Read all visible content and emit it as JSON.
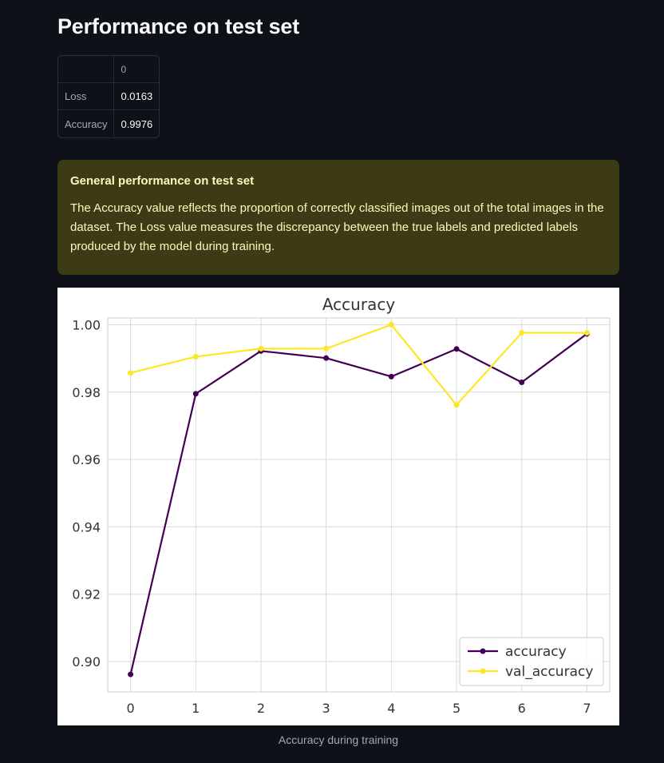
{
  "page": {
    "title": "Performance on test set"
  },
  "metrics_table": {
    "column_header": "0",
    "rows": [
      {
        "label": "Loss",
        "value": "0.0163"
      },
      {
        "label": "Accuracy",
        "value": "0.9976"
      }
    ]
  },
  "info_box": {
    "heading": "General performance on test set",
    "text": "The Accuracy value reflects the proportion of correctly classified images out of the total images in the dataset. The Loss value measures the discrepancy between the true labels and predicted labels produced by the model during training."
  },
  "chart_caption": "Accuracy during training",
  "colors": {
    "background": "#0e1117",
    "info_background": "#3c3b16",
    "info_text": "#fff8bd",
    "accuracy_series": "#440154",
    "val_accuracy_series": "#fde725"
  },
  "chart_data": {
    "type": "line",
    "title": "Accuracy",
    "xlabel": "",
    "ylabel": "",
    "x": [
      0,
      1,
      2,
      3,
      4,
      5,
      6,
      7
    ],
    "x_ticks": [
      "0",
      "1",
      "2",
      "3",
      "4",
      "5",
      "6",
      "7"
    ],
    "y_ticks": [
      "0.90",
      "0.92",
      "0.94",
      "0.96",
      "0.98",
      "1.00"
    ],
    "ylim": [
      0.891,
      1.002
    ],
    "xlim": [
      -0.35,
      7.35
    ],
    "grid": true,
    "legend_position": "lower-right",
    "series": [
      {
        "name": "accuracy",
        "color": "#440154",
        "values": [
          0.8962,
          0.9795,
          0.9922,
          0.9901,
          0.9846,
          0.9928,
          0.9829,
          0.9973
        ]
      },
      {
        "name": "val_accuracy",
        "color": "#fde725",
        "values": [
          0.9857,
          0.9905,
          0.9929,
          0.9929,
          1.0,
          0.9762,
          0.9976,
          0.9976
        ]
      }
    ]
  }
}
